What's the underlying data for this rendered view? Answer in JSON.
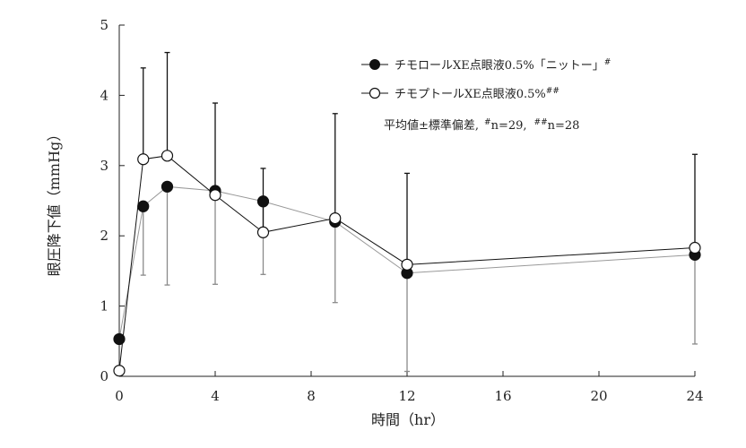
{
  "chart_data": {
    "type": "line",
    "xlabel": "時間（hr）",
    "ylabel": "眼圧降下値（mmHg）",
    "x_ticks": [
      0,
      4,
      8,
      12,
      16,
      20,
      24
    ],
    "y_ticks": [
      0,
      1,
      2,
      3,
      4,
      5
    ],
    "xlim": [
      0,
      24
    ],
    "ylim": [
      0,
      5
    ],
    "grid": false,
    "legend_position": "top-right",
    "series": [
      {
        "name": "チモロールXE点眼液0.5%「ニットー」",
        "name_sup": "#",
        "marker": "filled",
        "color": "#111111",
        "line_color": "#999999",
        "error_direction": "down",
        "x": [
          0,
          1,
          2,
          4,
          6,
          9,
          12,
          24
        ],
        "y": [
          0.53,
          2.42,
          2.7,
          2.64,
          2.49,
          2.2,
          1.47,
          1.73
        ],
        "err": [
          0.0,
          0.98,
          1.4,
          1.33,
          1.04,
          1.15,
          1.4,
          1.27
        ]
      },
      {
        "name": "チモプトールXE点眼液0.5%",
        "name_sup": "##",
        "marker": "open",
        "color": "#111111",
        "line_color": "#111111",
        "error_direction": "up",
        "x": [
          0,
          1,
          2,
          4,
          6,
          9,
          12,
          24
        ],
        "y": [
          0.08,
          3.09,
          3.14,
          2.58,
          2.05,
          2.25,
          1.59,
          1.83
        ],
        "err": [
          0.0,
          1.3,
          1.47,
          1.31,
          0.91,
          1.49,
          1.3,
          1.33
        ]
      }
    ],
    "annotation": {
      "prefix": "平均値±標準偏差,",
      "sup1": "#",
      "text1": "n=29,",
      "sup2": "##",
      "text2": "n=28"
    }
  }
}
